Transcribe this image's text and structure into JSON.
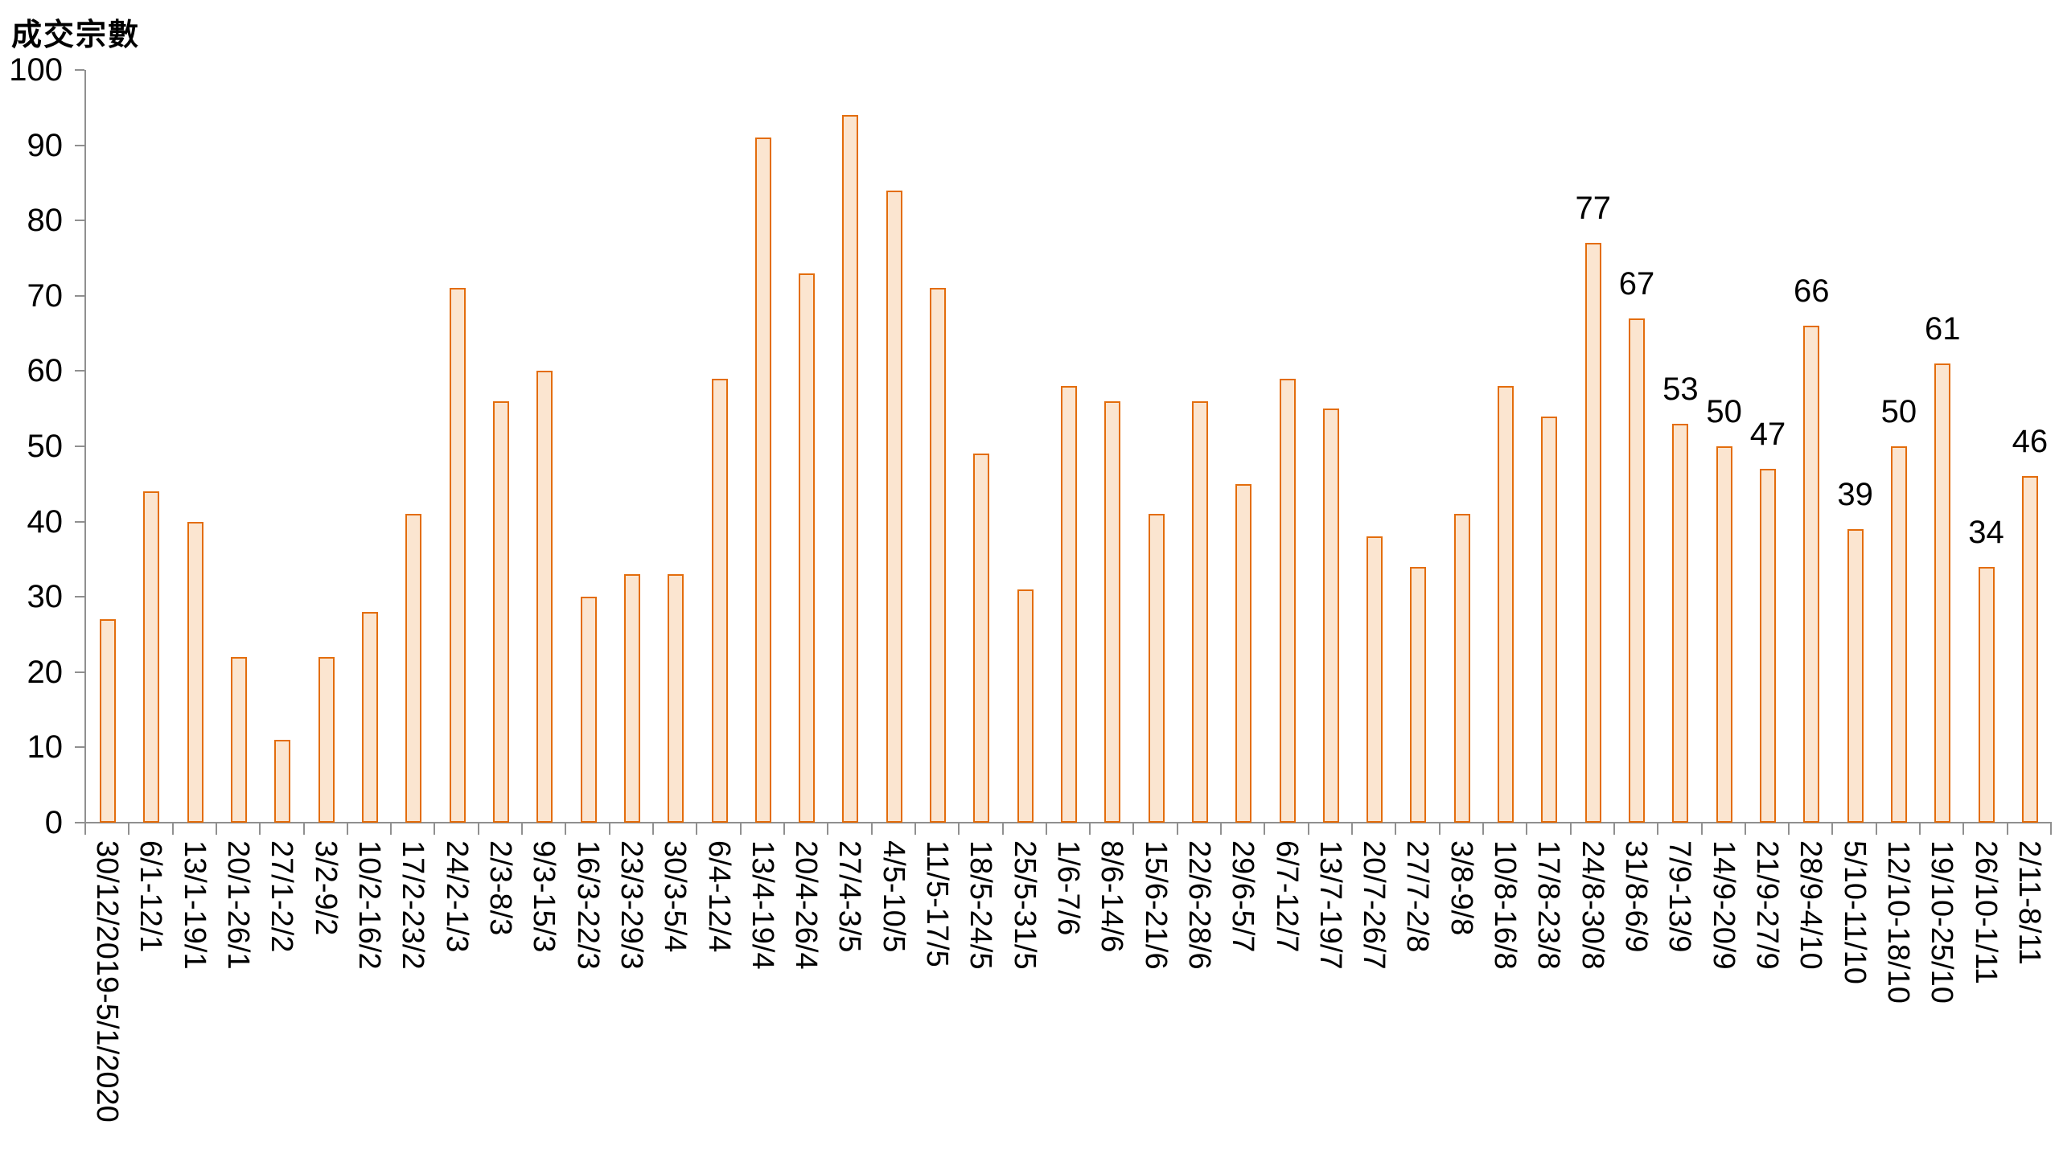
{
  "title": "成交宗數",
  "chart_data": {
    "type": "bar",
    "title": "成交宗數",
    "xlabel": "",
    "ylabel": "成交宗數",
    "ylim": [
      0,
      100
    ],
    "yticks": [
      0,
      10,
      20,
      30,
      40,
      50,
      60,
      70,
      80,
      90,
      100
    ],
    "grid": false,
    "legend": "none",
    "bar_fill_color": "#FBE5D0",
    "bar_border_color": "#E36D0C",
    "axis_color": "#909090",
    "text_color": "#000000",
    "categories": [
      "30/12/2019-5/1/2020",
      "6/1-12/1",
      "13/1-19/1",
      "20/1-26/1",
      "27/1-2/2",
      "3/2-9/2",
      "10/2-16/2",
      "17/2-23/2",
      "24/2-1/3",
      "2/3-8/3",
      "9/3-15/3",
      "16/3-22/3",
      "23/3-29/3",
      "30/3-5/4",
      "6/4-12/4",
      "13/4-19/4",
      "20/4-26/4",
      "27/4-3/5",
      "4/5-10/5",
      "11/5-17/5",
      "18/5-24/5",
      "25/5-31/5",
      "1/6-7/6",
      "8/6-14/6",
      "15/6-21/6",
      "22/6-28/6",
      "29/6-5/7",
      "6/7-12/7",
      "13/7-19/7",
      "20/7-26/7",
      "27/7-2/8",
      "3/8-9/8",
      "10/8-16/8",
      "17/8-23/8",
      "24/8-30/8",
      "31/8-6/9",
      "7/9-13/9",
      "14/9-20/9",
      "21/9-27/9",
      "28/9-4/10",
      "5/10-11/10",
      "12/10-18/10",
      "19/10-25/10",
      "26/10-1/11",
      "2/11-8/11"
    ],
    "values": [
      27,
      44,
      40,
      22,
      11,
      22,
      28,
      41,
      71,
      56,
      60,
      30,
      33,
      33,
      59,
      91,
      73,
      94,
      84,
      71,
      49,
      31,
      58,
      56,
      41,
      56,
      45,
      59,
      55,
      38,
      34,
      41,
      58,
      54,
      77,
      67,
      53,
      50,
      47,
      66,
      39,
      50,
      61,
      34,
      46
    ],
    "value_label_visible": [
      false,
      false,
      false,
      false,
      false,
      false,
      false,
      false,
      false,
      false,
      false,
      false,
      false,
      false,
      false,
      false,
      false,
      false,
      false,
      false,
      false,
      false,
      false,
      false,
      false,
      false,
      false,
      false,
      false,
      false,
      false,
      false,
      false,
      false,
      true,
      true,
      true,
      true,
      true,
      true,
      true,
      true,
      true,
      true,
      true
    ]
  }
}
